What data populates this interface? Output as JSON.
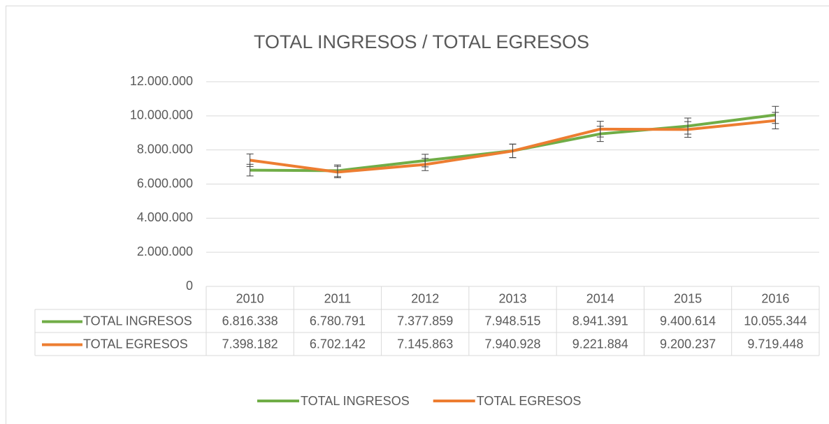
{
  "chart_data": {
    "type": "line",
    "title": "TOTAL INGRESOS / TOTAL EGRESOS",
    "categories": [
      "2010",
      "2011",
      "2012",
      "2013",
      "2014",
      "2015",
      "2016"
    ],
    "series": [
      {
        "name": "TOTAL INGRESOS",
        "color": "#70ad47",
        "values": [
          6816338,
          6780791,
          7377859,
          7948515,
          8941391,
          9400614,
          10055344
        ],
        "value_labels": [
          "6.816.338",
          "6.780.791",
          "7.377.859",
          "7.948.515",
          "8.941.391",
          "9.400.614",
          "10.055.344"
        ]
      },
      {
        "name": "TOTAL EGRESOS",
        "color": "#ed7d31",
        "values": [
          7398182,
          6702142,
          7145863,
          7940928,
          9221884,
          9200237,
          9719448
        ],
        "value_labels": [
          "7.398.182",
          "6.702.142",
          "7.145.863",
          "7.940.928",
          "9.221.884",
          "9.200.237",
          "9.719.448"
        ]
      }
    ],
    "error_bars": {
      "type": "percent",
      "value": 5
    },
    "ylim": [
      0,
      12000000
    ],
    "yticks": [
      0,
      {
        "value": 2000000,
        "label": "2.000.000"
      },
      {
        "value": 4000000,
        "label": "4.000.000"
      },
      {
        "value": 6000000,
        "label": "6.000.000"
      },
      {
        "value": 8000000,
        "label": "8.000.000"
      },
      {
        "value": 10000000,
        "label": "10.000.000"
      },
      {
        "value": 12000000,
        "label": "12.000.000"
      }
    ],
    "grid": true,
    "data_table": true,
    "legend": "bottom"
  }
}
